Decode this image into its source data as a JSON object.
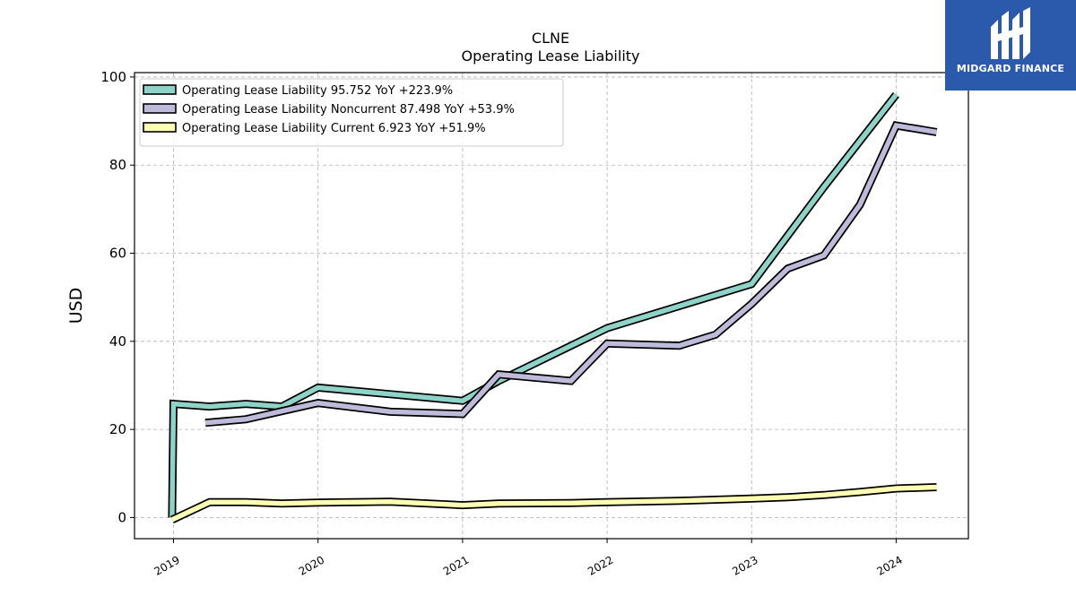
{
  "title": "CLNE",
  "subtitle": "Operating Lease Liability",
  "brand": {
    "name": "MIDGARD FINANCE",
    "logo": "midgard-logo"
  },
  "chart_data": {
    "type": "line",
    "title": "CLNE",
    "subtitle": "Operating Lease Liability",
    "xlabel": "",
    "ylabel": "USD",
    "xlim": [
      2018.73,
      2024.5
    ],
    "ylim": [
      -4.8,
      101
    ],
    "x_ticks": [
      2019,
      2020,
      2021,
      2022,
      2023,
      2024
    ],
    "x_tick_labels": [
      "2019",
      "2020",
      "2021",
      "2022",
      "2023",
      "2024"
    ],
    "y_ticks": [
      0,
      20,
      40,
      60,
      80,
      100
    ],
    "y_tick_labels": [
      "0",
      "20",
      "40",
      "60",
      "80",
      "100"
    ],
    "grid": true,
    "legend_position": "top-left",
    "series": [
      {
        "name": "Operating Lease Liability  95.752 YoY +223.9%",
        "color": "#8dd3c7",
        "points": [
          [
            2018.99,
            0
          ],
          [
            2019.0,
            25.8
          ],
          [
            2019.25,
            25.2
          ],
          [
            2019.5,
            25.8
          ],
          [
            2019.75,
            25.2
          ],
          [
            2020.0,
            29.5
          ],
          [
            2020.5,
            28.0
          ],
          [
            2021.0,
            26.5
          ],
          [
            2021.25,
            31.0
          ],
          [
            2022.0,
            43.0
          ],
          [
            2022.5,
            48.0
          ],
          [
            2023.0,
            53.0
          ],
          [
            2023.5,
            75.0
          ],
          [
            2024.0,
            96.0
          ]
        ]
      },
      {
        "name": "Operating Lease Liability Noncurrent  87.498 YoY +53.9%",
        "color": "#bebada",
        "points": [
          [
            2019.22,
            21.5
          ],
          [
            2019.5,
            22.3
          ],
          [
            2020.0,
            26.0
          ],
          [
            2020.5,
            24.0
          ],
          [
            2021.0,
            23.5
          ],
          [
            2021.25,
            32.5
          ],
          [
            2021.75,
            31.0
          ],
          [
            2022.0,
            39.5
          ],
          [
            2022.5,
            39.0
          ],
          [
            2022.75,
            41.5
          ],
          [
            2023.0,
            48.5
          ],
          [
            2023.25,
            56.5
          ],
          [
            2023.5,
            59.5
          ],
          [
            2023.75,
            71.0
          ],
          [
            2024.0,
            89.0
          ],
          [
            2024.28,
            87.5
          ]
        ]
      },
      {
        "name": "Operating Lease Liability Current  6.923 YoY +51.9%",
        "color": "#ffffb3",
        "points": [
          [
            2018.99,
            -0.5
          ],
          [
            2019.25,
            3.5
          ],
          [
            2019.5,
            3.5
          ],
          [
            2019.75,
            3.2
          ],
          [
            2020.0,
            3.4
          ],
          [
            2020.25,
            3.5
          ],
          [
            2020.5,
            3.6
          ],
          [
            2021.0,
            2.8
          ],
          [
            2021.25,
            3.2
          ],
          [
            2021.75,
            3.3
          ],
          [
            2022.0,
            3.5
          ],
          [
            2022.5,
            3.8
          ],
          [
            2023.0,
            4.3
          ],
          [
            2023.25,
            4.6
          ],
          [
            2023.5,
            5.1
          ],
          [
            2023.75,
            5.8
          ],
          [
            2024.0,
            6.6
          ],
          [
            2024.28,
            6.9
          ]
        ]
      }
    ]
  }
}
